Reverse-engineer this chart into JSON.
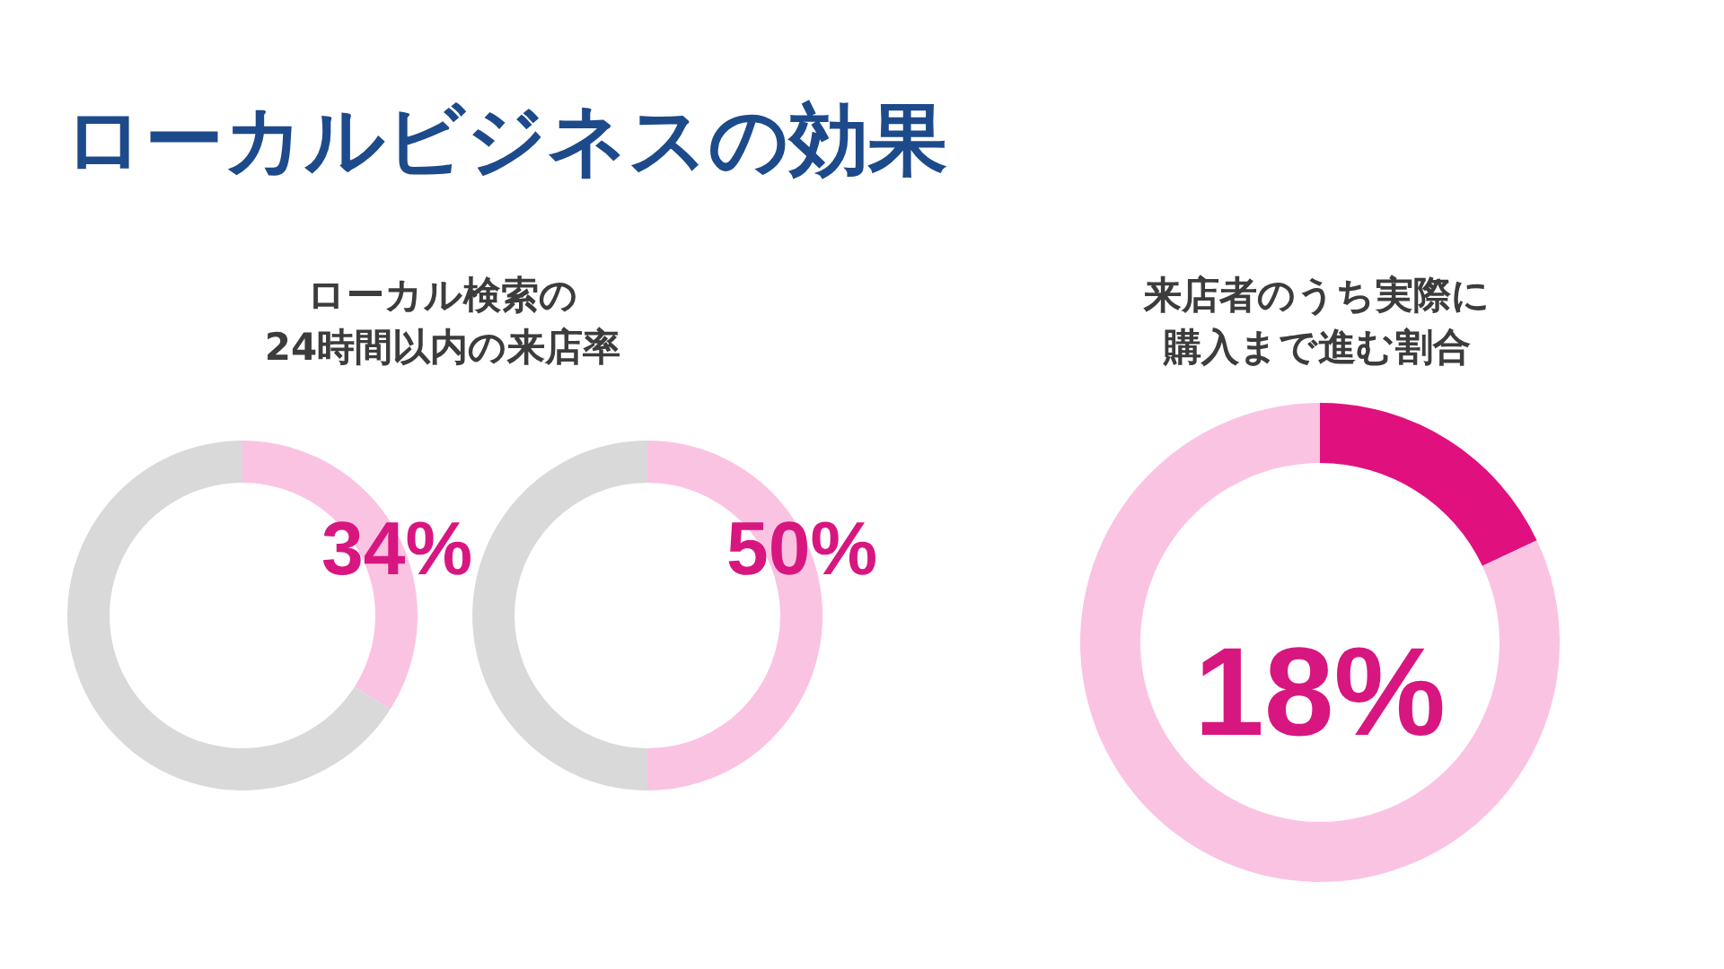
{
  "chart_data": [
    {
      "type": "donut",
      "title": "ローカルビジネスの効果",
      "subtitle": "ローカル検索の24時間以内の来店率",
      "categories": [
        null,
        null
      ],
      "values": [
        34,
        66
      ],
      "colors": [
        "#fbc3e2",
        "#d9d9d9"
      ],
      "value_labels": [
        "34%",
        null
      ]
    },
    {
      "type": "donut",
      "categories": [
        null,
        null
      ],
      "values": [
        50,
        50
      ],
      "colors": [
        "#fbc3e2",
        "#d9d9d9"
      ],
      "value_labels": [
        "50%",
        null
      ]
    },
    {
      "type": "donut",
      "subtitle": "来店者のうち実際に購入まで進む割合",
      "categories": [
        null,
        null
      ],
      "values": [
        18,
        82
      ],
      "colors": [
        "#e0117f",
        "#fbc3e2"
      ],
      "annotations": [
        "18%"
      ]
    }
  ]
}
